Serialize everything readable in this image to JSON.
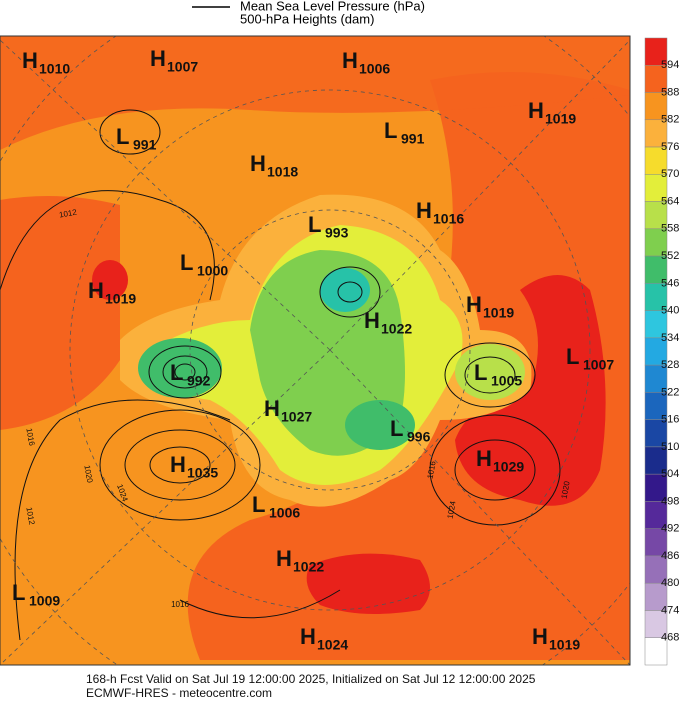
{
  "legend": {
    "pressure": "Mean Sea Level Pressure (hPa)",
    "heights": "500-hPa Heights (dam)"
  },
  "colorbar": {
    "ticks": [
      594,
      588,
      582,
      576,
      570,
      564,
      558,
      552,
      546,
      540,
      534,
      528,
      522,
      516,
      510,
      504,
      498,
      492,
      486,
      480,
      474,
      468
    ],
    "colors": [
      "#e8221b",
      "#f5631e",
      "#f7941f",
      "#fbb13c",
      "#f6dc2c",
      "#e3ee3a",
      "#b8e04a",
      "#7fcf4e",
      "#40bd6a",
      "#27c2a8",
      "#2ec6df",
      "#23a9e2",
      "#1f88d2",
      "#1b66bd",
      "#1a47a4",
      "#1a2c8c",
      "#33188a",
      "#55299a",
      "#7648a6",
      "#9670b8",
      "#b79bcc",
      "#d9c8e3",
      "#ffffff"
    ]
  },
  "centers": [
    {
      "letter": "H",
      "value": 1010
    },
    {
      "letter": "H",
      "value": 1007
    },
    {
      "letter": "H",
      "value": 1006
    },
    {
      "letter": "H",
      "value": 1019
    },
    {
      "letter": "L",
      "value": 991
    },
    {
      "letter": "L",
      "value": 991
    },
    {
      "letter": "H",
      "value": 1018
    },
    {
      "letter": "H",
      "value": 1016
    },
    {
      "letter": "L",
      "value": 993
    },
    {
      "letter": "L",
      "value": 1000
    },
    {
      "letter": "H",
      "value": 1019
    },
    {
      "letter": "H",
      "value": 1019
    },
    {
      "letter": "H",
      "value": 1022
    },
    {
      "letter": "L",
      "value": 1007
    },
    {
      "letter": "L",
      "value": 992
    },
    {
      "letter": "L",
      "value": 1005
    },
    {
      "letter": "H",
      "value": 1027
    },
    {
      "letter": "L",
      "value": 996
    },
    {
      "letter": "H",
      "value": 1029
    },
    {
      "letter": "H",
      "value": 1035
    },
    {
      "letter": "L",
      "value": 1006
    },
    {
      "letter": "H",
      "value": 1022
    },
    {
      "letter": "L",
      "value": 1009
    },
    {
      "letter": "H",
      "value": 1024
    },
    {
      "letter": "H",
      "value": 1019
    }
  ],
  "isobar_labels": [
    1012,
    1016,
    1020,
    1024,
    1012,
    1016,
    1024,
    1020,
    1016
  ],
  "footer": {
    "valid": "168-h Fcst Valid on Sat Jul 19 12:00:00 2025, Initialized on Sat Jul 12 12:00:00 2025",
    "source": "ECMWF-HRES - meteocentre.com"
  }
}
